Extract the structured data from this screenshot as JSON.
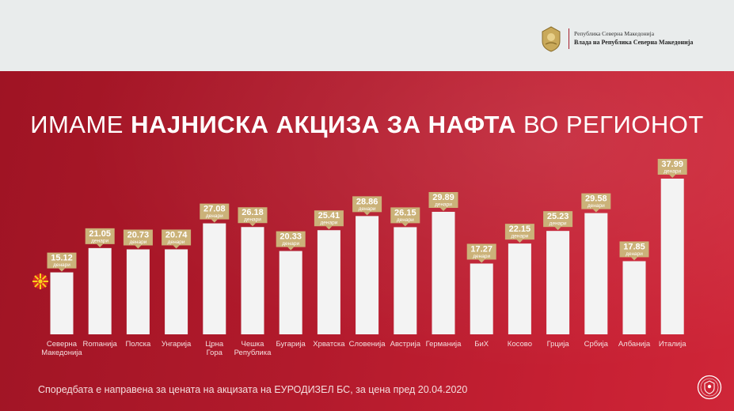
{
  "header": {
    "gov_line1": "Република Северна Македонија",
    "gov_line2": "Влада на Република Северна Македонија"
  },
  "headline": {
    "part1": "ИМАМЕ ",
    "part2": "НАЈНИСКА АКЦИЗА ЗА НАФТА",
    "part3": " ВО РЕГИОНОТ"
  },
  "footnote": "Споредбата е направена за цената на акцизата на ЕУРОДИЗЕЛ БС, за цена пред 20.04.2020",
  "colors": {
    "background": "#b21a2c",
    "bar": "#f3f3f3",
    "label_bg": "#cbb279",
    "label_text": "#ffffff",
    "axis_text": "#f3dede"
  },
  "chart_data": {
    "type": "bar",
    "unit": "денари",
    "categories": [
      "Северна Македонија",
      "Romaнија",
      "Полска",
      "Унгарија",
      "Црна Гора",
      "Чешка Република",
      "Бугарија",
      "Хрватска",
      "Словенија",
      "Австрија",
      "Германија",
      "БиХ",
      "Косово",
      "Грција",
      "Србија",
      "Албанија",
      "Италија"
    ],
    "values": [
      15.12,
      21.05,
      20.73,
      20.74,
      27.08,
      26.18,
      20.33,
      25.41,
      28.86,
      26.15,
      29.89,
      17.27,
      22.15,
      25.23,
      29.58,
      17.85,
      37.99
    ],
    "value_labels": [
      "15.12",
      "21.05",
      "20.73",
      "20.74",
      "27.08",
      "26.18",
      "20.33",
      "25.41",
      "28.86",
      "26.15",
      "29.89",
      "17.27",
      "22.15",
      "25.23",
      "29.58",
      "17.85",
      "37.99"
    ],
    "highlight_flag": "north-macedonia-flag"
  }
}
